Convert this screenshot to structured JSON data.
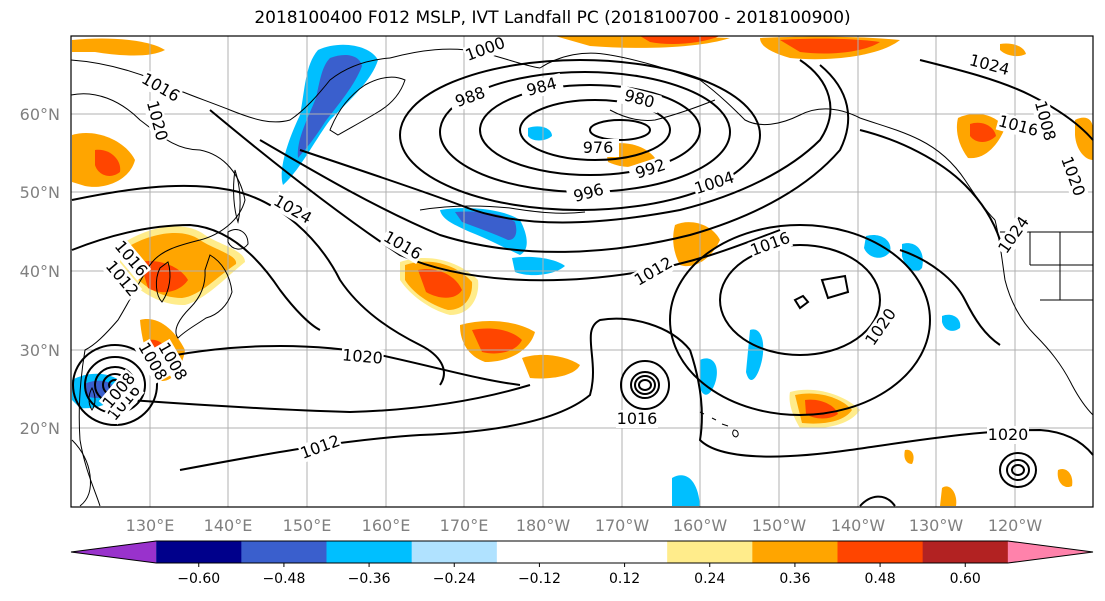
{
  "title": "2018100400 F012 MSLP, IVT Landfall PC (2018100700 - 2018100900)",
  "map": {
    "lat_labels": [
      "60°N",
      "50°N",
      "40°N",
      "30°N",
      "20°N"
    ],
    "lon_labels": [
      "130°E",
      "140°E",
      "150°E",
      "160°E",
      "170°E",
      "180°W",
      "170°W",
      "160°W",
      "150°W",
      "140°W",
      "130°W",
      "120°W"
    ],
    "label_color": "#808080",
    "grid_color": "#b0b0b0"
  },
  "mslp_labels": [
    "1000",
    "984",
    "988",
    "980",
    "976",
    "996",
    "992",
    "1004",
    "1016",
    "1020",
    "1024",
    "1016",
    "1012",
    "1016",
    "1024",
    "1016",
    "1020",
    "1024",
    "1008",
    "1016",
    "1012",
    "1020",
    "1020",
    "1008",
    "1008",
    "1012",
    "1016",
    "1008",
    "1016",
    "1020",
    "1012",
    "1004",
    "1008",
    "1008"
  ],
  "colorbar": {
    "colors": [
      "#9932cc",
      "#00008b",
      "#3a5fcd",
      "#00bfff",
      "#b0e2ff",
      "#ffffff",
      "#ffffff",
      "#ffec8b",
      "#ffa500",
      "#ff4500",
      "#b22222",
      "#ff82ab"
    ],
    "tick_labels": [
      "−0.60",
      "−0.48",
      "−0.36",
      "−0.24",
      "−0.12",
      "0.12",
      "0.24",
      "0.36",
      "0.48",
      "0.60"
    ]
  }
}
